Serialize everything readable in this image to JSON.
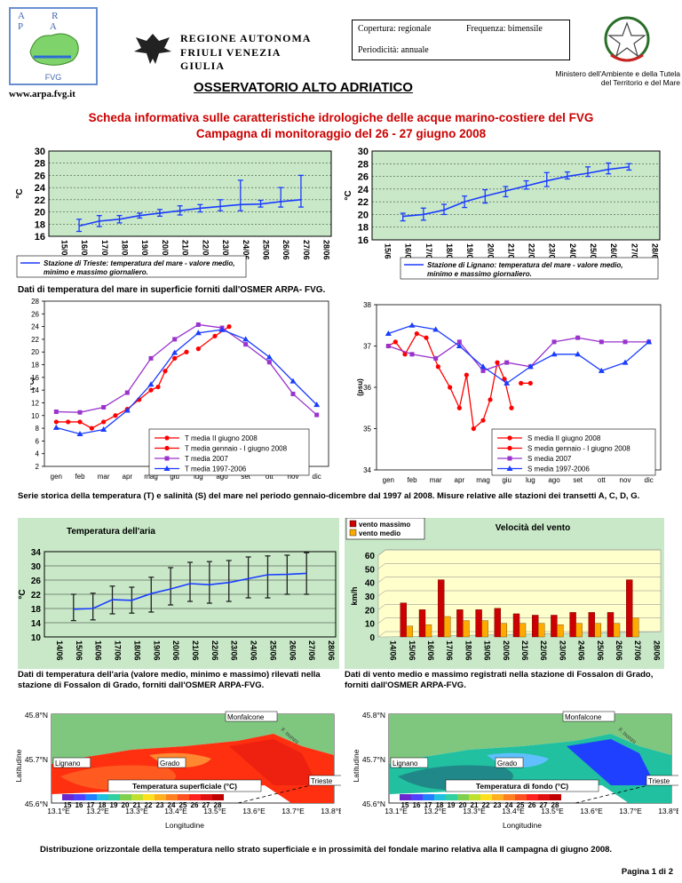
{
  "header": {
    "arpa_letters": "A R P A",
    "arpa_sub": "FVG",
    "website": "www.arpa.fvg.it",
    "region_line1": "REGIONE AUTONOMA",
    "region_line2": "FRIULI VENEZIA GIULIA",
    "coverage": "Copertura: regionale",
    "frequency": "Frequenza: bimensile",
    "periodicity": "Periodicità: annuale",
    "ministry": "Ministero dell'Ambiente e della Tutela del Territorio e del Mare",
    "observatory": "OSSERVATORIO ALTO ADRIATICO"
  },
  "title_line1": "Scheda informativa sulle caratteristiche idrologiche delle acque marino-costiere del FVG",
  "title_line2": "Campagna di monitoraggio del 26 - 27 giugno 2008",
  "colors": {
    "red": "#ff0000",
    "purple": "#9933cc",
    "blue": "#1a3cff",
    "chart_bg": "#c8e8c8",
    "chart_yellow": "#ffffcc",
    "bar_red": "#cc0000",
    "bar_orange": "#ffaa00"
  },
  "chart_data": [
    {
      "type": "line",
      "ylabel": "°C",
      "ylim": [
        16,
        30
      ],
      "categories": [
        "15/06",
        "16/06",
        "17/06",
        "18/06",
        "19/06",
        "20/06",
        "21/06",
        "22/06",
        "23/06",
        "24/06",
        "25/06",
        "26/06",
        "27/06",
        "28/06"
      ],
      "series": [
        {
          "stat": "mean",
          "values": [
            null,
            17.7,
            18.5,
            18.8,
            19.4,
            19.8,
            20.2,
            20.6,
            20.9,
            21.2,
            21.3,
            21.7,
            22.0,
            null
          ]
        },
        {
          "stat": "min",
          "values": [
            null,
            16.8,
            17.6,
            18.2,
            19.0,
            19.3,
            19.5,
            20.0,
            20.2,
            20.2,
            20.8,
            20.8,
            20.8,
            null
          ]
        },
        {
          "stat": "max",
          "values": [
            null,
            18.8,
            19.4,
            19.4,
            19.8,
            20.4,
            21.0,
            21.2,
            22.0,
            25.2,
            21.9,
            24.0,
            26.0,
            null
          ]
        }
      ],
      "legend": "Stazione di Trieste: temperatura del mare - valore medio, minimo e massimo giornaliero."
    },
    {
      "type": "line",
      "ylabel": "°C",
      "ylim": [
        16,
        30
      ],
      "categories": [
        "15/6",
        "16/06",
        "17/06",
        "18/06",
        "19/06",
        "20/06",
        "21/06",
        "22/06",
        "23/06",
        "24/06",
        "25/06",
        "26/06",
        "27/06",
        "28/6"
      ],
      "series": [
        {
          "stat": "mean",
          "values": [
            null,
            19.7,
            20.0,
            20.7,
            22.0,
            22.9,
            23.7,
            24.5,
            25.3,
            26.0,
            26.5,
            27.1,
            27.5,
            null
          ]
        },
        {
          "stat": "min",
          "values": [
            null,
            19.0,
            19.1,
            20.0,
            21.1,
            21.8,
            22.8,
            24.0,
            24.4,
            25.6,
            26.0,
            26.4,
            27.0,
            null
          ]
        },
        {
          "stat": "max",
          "values": [
            null,
            20.2,
            21.0,
            21.6,
            22.9,
            23.9,
            24.4,
            25.3,
            26.6,
            26.7,
            27.5,
            28.1,
            28.0,
            null
          ]
        }
      ],
      "legend": "Stazione di Lignano: temperatura del mare - valore medio, minimo e massimo giornaliero."
    },
    {
      "type": "line",
      "ylabel": "(°C)",
      "ylim": [
        2,
        28
      ],
      "categories": [
        "gen",
        "feb",
        "mar",
        "apr",
        "mag",
        "giu",
        "lug",
        "ago",
        "set",
        "ott",
        "nov",
        "dic"
      ],
      "series": [
        {
          "name": "T media II giugno 2008",
          "color": "#ff0000",
          "x": [
            7,
            7.7,
            8.3
          ],
          "values": [
            20.5,
            22.5,
            24.0
          ]
        },
        {
          "name": "T media gennaio - I giugno 2008",
          "color": "#ff0000",
          "x": [
            1,
            1.5,
            2,
            2.5,
            3,
            3.5,
            4,
            4.5,
            5,
            5.3,
            5.6,
            6,
            6.5
          ],
          "values": [
            9.0,
            9.0,
            9.0,
            8.0,
            9.0,
            10.0,
            11.0,
            12.5,
            14.0,
            14.5,
            17.0,
            19.0,
            20.0
          ]
        },
        {
          "name": "T media 2007",
          "color": "#9933cc",
          "x": [
            1,
            2,
            3,
            4,
            5,
            6,
            7,
            8,
            9,
            10,
            11,
            12
          ],
          "values": [
            10.6,
            10.5,
            11.3,
            13.6,
            19.0,
            22.0,
            24.3,
            23.8,
            21.2,
            18.4,
            13.4,
            10.1
          ]
        },
        {
          "name": "T media 1997-2006",
          "color": "#1a3cff",
          "x": [
            1,
            2,
            3,
            4,
            5,
            6,
            7,
            8,
            9,
            10,
            11,
            12
          ],
          "values": [
            8.1,
            7.1,
            7.8,
            10.8,
            14.9,
            19.9,
            23.0,
            23.5,
            22.0,
            19.2,
            15.4,
            11.7
          ]
        }
      ]
    },
    {
      "type": "line",
      "ylabel": "(psu)",
      "ylim": [
        34,
        38
      ],
      "categories": [
        "gen",
        "feb",
        "mar",
        "apr",
        "mag",
        "giu",
        "lug",
        "ago",
        "set",
        "ott",
        "nov",
        "dic"
      ],
      "series": [
        {
          "name": "S media II giugno 2008",
          "color": "#ff0000",
          "x": [
            6.6,
            7.0
          ],
          "values": [
            36.1,
            36.1
          ]
        },
        {
          "name": "S media gennaio - I giugno 2008",
          "color": "#ff0000",
          "x": [
            1,
            1.3,
            1.7,
            2.2,
            2.6,
            3.1,
            3.6,
            4.0,
            4.3,
            4.6,
            5.0,
            5.3,
            5.6,
            5.9,
            6.2
          ],
          "values": [
            37.0,
            37.1,
            36.8,
            37.3,
            37.2,
            36.5,
            36.0,
            35.5,
            36.3,
            35.0,
            35.2,
            35.7,
            36.6,
            36.2,
            35.5
          ]
        },
        {
          "name": "S media 2007",
          "color": "#9933cc",
          "x": [
            1,
            2,
            3,
            4,
            5,
            6,
            7,
            8,
            9,
            10,
            11,
            12
          ],
          "values": [
            37.0,
            36.8,
            36.7,
            37.1,
            36.4,
            36.6,
            36.5,
            37.1,
            37.2,
            37.1,
            37.1,
            37.1
          ]
        },
        {
          "name": "S media 1997-2006",
          "color": "#1a3cff",
          "x": [
            1,
            2,
            3,
            4,
            5,
            6,
            7,
            8,
            9,
            10,
            11,
            12
          ],
          "values": [
            37.3,
            37.5,
            37.4,
            37.0,
            36.5,
            36.1,
            36.5,
            36.8,
            36.8,
            36.4,
            36.6,
            37.1
          ]
        }
      ]
    },
    {
      "type": "line",
      "title": "Temperatura dell'aria",
      "ylabel": "°C",
      "ylim": [
        10,
        34
      ],
      "categories": [
        "14/06",
        "15/06",
        "16/06",
        "17/06",
        "18/06",
        "19/06",
        "20/06",
        "21/06",
        "22/06",
        "23/06",
        "24/06",
        "25/06",
        "26/06",
        "27/06",
        "28/06"
      ],
      "series": [
        {
          "stat": "mean",
          "values": [
            null,
            17.8,
            18.0,
            20.5,
            20.3,
            22.2,
            23.5,
            25.0,
            24.7,
            25.3,
            26.4,
            27.5,
            27.6,
            27.9,
            null
          ]
        },
        {
          "stat": "min",
          "values": [
            null,
            14.6,
            14.8,
            16.5,
            16.7,
            17.0,
            19.0,
            20.0,
            19.5,
            20.0,
            21.0,
            21.0,
            22.0,
            22.0,
            null
          ]
        },
        {
          "stat": "max",
          "values": [
            null,
            22.0,
            22.3,
            24.3,
            24.0,
            26.8,
            29.5,
            31.0,
            31.2,
            31.5,
            32.5,
            32.8,
            33.0,
            33.7,
            null
          ]
        }
      ]
    },
    {
      "type": "bar",
      "title": "Velocità del vento",
      "ylabel": "km/h",
      "ylim": [
        0,
        60
      ],
      "categories": [
        "14/06",
        "15/06",
        "16/06",
        "17/06",
        "18/06",
        "19/06",
        "20/06",
        "21/06",
        "22/06",
        "23/06",
        "24/06",
        "25/06",
        "26/06",
        "27/06",
        "28/06"
      ],
      "series": [
        {
          "name": "vento massimo",
          "color": "#cc0000",
          "values": [
            null,
            25,
            20,
            42,
            20,
            20,
            21,
            17,
            16,
            16,
            18,
            18,
            18,
            42,
            null
          ]
        },
        {
          "name": "vento medio",
          "color": "#ffaa00",
          "values": [
            null,
            8,
            9,
            15,
            12,
            12,
            10,
            10,
            10,
            9,
            10,
            10,
            10,
            14,
            null
          ]
        }
      ]
    }
  ],
  "captions": {
    "sea_temp": "Dati di temperatura del mare in superficie forniti dall'OSMER ARPA- FVG.",
    "series": "Serie storica della temperatura (T) e salinità (S) del mare nel periodo gennaio-dicembre dal 1997 al 2008. Misure relative alle stazioni dei transetti A, C, D, G.",
    "air": "Dati di temperatura dell'aria (valore medio, minimo e massimo) rilevati nella stazione di Fossalon di Grado, forniti dall'OSMER ARPA-FVG.",
    "wind": "Dati di vento medio e massimo registrati nella stazione di Fossalon di Grado, forniti dall'OSMER ARPA-FVG.",
    "maps": "Distribuzione orizzontale della temperatura nello strato superficiale e in prossimità del fondale marino relativa alla II campagna di giugno 2008."
  },
  "maps": {
    "lat_ticks": [
      "45.8°N",
      "45.7°N",
      "45.6°N"
    ],
    "lon_ticks": [
      "13.1°E",
      "13.2°E",
      "13.3°E",
      "13.4°E",
      "13.5°E",
      "13.6°E",
      "13.7°E",
      "13.8°E"
    ],
    "xlabel": "Longitudine",
    "ylabel": "Latitudine",
    "places": [
      "Monfalcone",
      "Lignano",
      "Grado",
      "Trieste"
    ],
    "river": "F. Isonzo",
    "scale": [
      "15",
      "16",
      "17",
      "18",
      "19",
      "20",
      "21",
      "22",
      "23",
      "24",
      "25",
      "26",
      "27",
      "28"
    ],
    "left_title": "Temperatura superficiale (°C)",
    "right_title": "Temperatura di fondo (°C)"
  },
  "footer": {
    "page": "Pagina 1 di 2"
  }
}
